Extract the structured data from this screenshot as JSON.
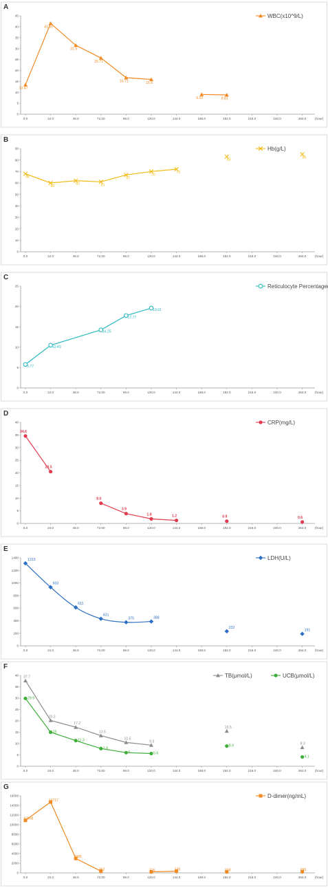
{
  "x_ticks": [
    "0.0",
    "24.0",
    "48.0",
    "72.00",
    "96.0",
    "120.0",
    "144.0",
    "168.0",
    "192.0",
    "216.0",
    "240.0",
    "264.0"
  ],
  "x_unit": "(hour)",
  "chart_data": [
    {
      "panel": "A",
      "type": "line",
      "ylim": [
        0,
        45
      ],
      "yticks": [
        0,
        5,
        10,
        15,
        20,
        25,
        30,
        35,
        40,
        45
      ],
      "series": [
        {
          "name": "WBC(x10^9/L)",
          "color": "#f08a24",
          "marker": "triangle",
          "segments": [
            [
              {
                "x": 0,
                "y": 13.47,
                "label": "13.47"
              },
              {
                "x": 24,
                "y": 41.55,
                "label": "41.55"
              },
              {
                "x": 48,
                "y": 31.5,
                "label": "31.5"
              },
              {
                "x": 72,
                "y": 25.71,
                "label": "25.71"
              },
              {
                "x": 96,
                "y": 16.71,
                "label": "16.71"
              },
              {
                "x": 120,
                "y": 15.9,
                "label": "15.9"
              }
            ],
            [
              {
                "x": 168,
                "y": 9.02,
                "label": "9.02"
              },
              {
                "x": 192,
                "y": 8.81,
                "label": "8.81"
              }
            ]
          ]
        }
      ]
    },
    {
      "panel": "B",
      "type": "line",
      "ylim": [
        0,
        90
      ],
      "yticks": [
        0,
        10,
        20,
        30,
        40,
        50,
        60,
        70,
        80,
        90
      ],
      "series": [
        {
          "name": "Hb(g/L)",
          "color": "#f2b90f",
          "marker": "x",
          "segments": [
            [
              {
                "x": 0,
                "y": 68,
                "label": "68"
              },
              {
                "x": 24,
                "y": 60,
                "label": "60"
              },
              {
                "x": 48,
                "y": 62,
                "label": "62"
              },
              {
                "x": 72,
                "y": 61,
                "label": "61"
              },
              {
                "x": 96,
                "y": 67,
                "label": "67"
              },
              {
                "x": 120,
                "y": 70,
                "label": "70"
              },
              {
                "x": 144,
                "y": 72,
                "label": "72"
              }
            ],
            [
              {
                "x": 192,
                "y": 83,
                "label": "83"
              }
            ],
            [
              {
                "x": 264,
                "y": 85,
                "label": "85"
              }
            ]
          ]
        }
      ]
    },
    {
      "panel": "C",
      "type": "line",
      "ylim": [
        0,
        25
      ],
      "yticks": [
        0,
        5,
        10,
        15,
        20,
        25
      ],
      "series": [
        {
          "name": "Reticulocyte Percentage(%)",
          "color": "#2ab8c0",
          "marker": "circle-open",
          "segments": [
            [
              {
                "x": 0,
                "y": 5.77,
                "label": "5.77"
              },
              {
                "x": 24,
                "y": 10.49,
                "label": "10.49"
              },
              {
                "x": 72,
                "y": 14.25,
                "label": "14.25"
              },
              {
                "x": 96,
                "y": 17.77,
                "label": "17.77"
              },
              {
                "x": 120,
                "y": 19.61,
                "label": "19.61"
              }
            ]
          ]
        }
      ]
    },
    {
      "panel": "D",
      "type": "line",
      "ylim": [
        0,
        40
      ],
      "yticks": [
        0,
        5,
        10,
        15,
        20,
        25,
        30,
        35,
        40
      ],
      "series": [
        {
          "name": "CRP(mg/L)",
          "color": "#e23a4e",
          "marker": "circle",
          "segments": [
            [
              {
                "x": 0,
                "y": 34.6,
                "label": "34.6"
              },
              {
                "x": 24,
                "y": 20.5,
                "label": "20.5"
              }
            ],
            [
              {
                "x": 72,
                "y": 8.0,
                "label": "8.0"
              },
              {
                "x": 96,
                "y": 3.9,
                "label": "3.9"
              },
              {
                "x": 120,
                "y": 1.8,
                "label": "1.8"
              },
              {
                "x": 144,
                "y": 1.2,
                "label": "1.2"
              }
            ],
            [
              {
                "x": 192,
                "y": 0.9,
                "label": "0.9"
              }
            ],
            [
              {
                "x": 264,
                "y": 0.6,
                "label": "0.6"
              }
            ]
          ]
        }
      ]
    },
    {
      "panel": "E",
      "type": "line",
      "ylim": [
        0,
        1400
      ],
      "yticks": [
        0,
        200,
        400,
        600,
        800,
        1000,
        1200,
        1400
      ],
      "series": [
        {
          "name": "LDH(U/L)",
          "color": "#2d6fc4",
          "marker": "diamond",
          "smooth": true,
          "segments": [
            [
              {
                "x": 0,
                "y": 1313,
                "label": "1313"
              },
              {
                "x": 24,
                "y": 933,
                "label": "933"
              },
              {
                "x": 48,
                "y": 611,
                "label": "611"
              },
              {
                "x": 72,
                "y": 431,
                "label": "431"
              },
              {
                "x": 96,
                "y": 375,
                "label": "375"
              },
              {
                "x": 120,
                "y": 388,
                "label": "388"
              }
            ],
            [
              {
                "x": 192,
                "y": 232,
                "label": "232"
              }
            ],
            [
              {
                "x": 264,
                "y": 191,
                "label": "191"
              }
            ]
          ]
        }
      ]
    },
    {
      "panel": "F",
      "type": "line",
      "ylim": [
        0,
        40
      ],
      "yticks": [
        0,
        5,
        10,
        15,
        20,
        25,
        30,
        35,
        40
      ],
      "series": [
        {
          "name": "TB(μmol/L)",
          "color": "#8c8c8c",
          "marker": "triangle",
          "segments": [
            [
              {
                "x": 0,
                "y": 37.7,
                "label": "37.7"
              },
              {
                "x": 24,
                "y": 20.2,
                "label": "20.2"
              },
              {
                "x": 48,
                "y": 17.2,
                "label": "17.2"
              },
              {
                "x": 72,
                "y": 13.5,
                "label": "13.5"
              },
              {
                "x": 96,
                "y": 10.5,
                "label": "10.5"
              },
              {
                "x": 120,
                "y": 9.3,
                "label": "9.3"
              }
            ],
            [
              {
                "x": 192,
                "y": 15.5,
                "label": "15.5"
              }
            ],
            [
              {
                "x": 264,
                "y": 8.3,
                "label": "8.3"
              }
            ]
          ]
        },
        {
          "name": "UCB(μmol/L)",
          "color": "#3fae3a",
          "marker": "circle",
          "segments": [
            [
              {
                "x": 0,
                "y": 29.9,
                "label": "29.9"
              },
              {
                "x": 24,
                "y": 15,
                "label": "15"
              },
              {
                "x": 48,
                "y": 11.3,
                "label": "11.3"
              },
              {
                "x": 72,
                "y": 7.8,
                "label": "7.8"
              },
              {
                "x": 96,
                "y": 6,
                "label": "6"
              },
              {
                "x": 120,
                "y": 5.6,
                "label": "5.6"
              }
            ],
            [
              {
                "x": 192,
                "y": 8.9,
                "label": "8.9"
              }
            ],
            [
              {
                "x": 264,
                "y": 4.1,
                "label": "4.1"
              }
            ]
          ]
        }
      ]
    },
    {
      "panel": "G",
      "type": "line",
      "ylim": [
        0,
        16000
      ],
      "yticks": [
        0,
        2000,
        4000,
        6000,
        8000,
        10000,
        12000,
        14000,
        16000
      ],
      "series": [
        {
          "name": "D-dimer(ng/mL)",
          "color": "#f08a24",
          "marker": "square",
          "segments": [
            [
              {
                "x": 0,
                "y": 10908,
                "label": "10908"
              },
              {
                "x": 24,
                "y": 14717,
                "label": "14717"
              },
              {
                "x": 48,
                "y": 2985,
                "label": "2985"
              },
              {
                "x": 72,
                "y": 362,
                "label": "362"
              }
            ],
            [
              {
                "x": 120,
                "y": 216,
                "label": "216"
              },
              {
                "x": 144,
                "y": 349,
                "label": "349"
              }
            ],
            [
              {
                "x": 192,
                "y": 228,
                "label": "228"
              }
            ],
            [
              {
                "x": 264,
                "y": 255,
                "label": "255"
              }
            ]
          ]
        }
      ]
    }
  ]
}
